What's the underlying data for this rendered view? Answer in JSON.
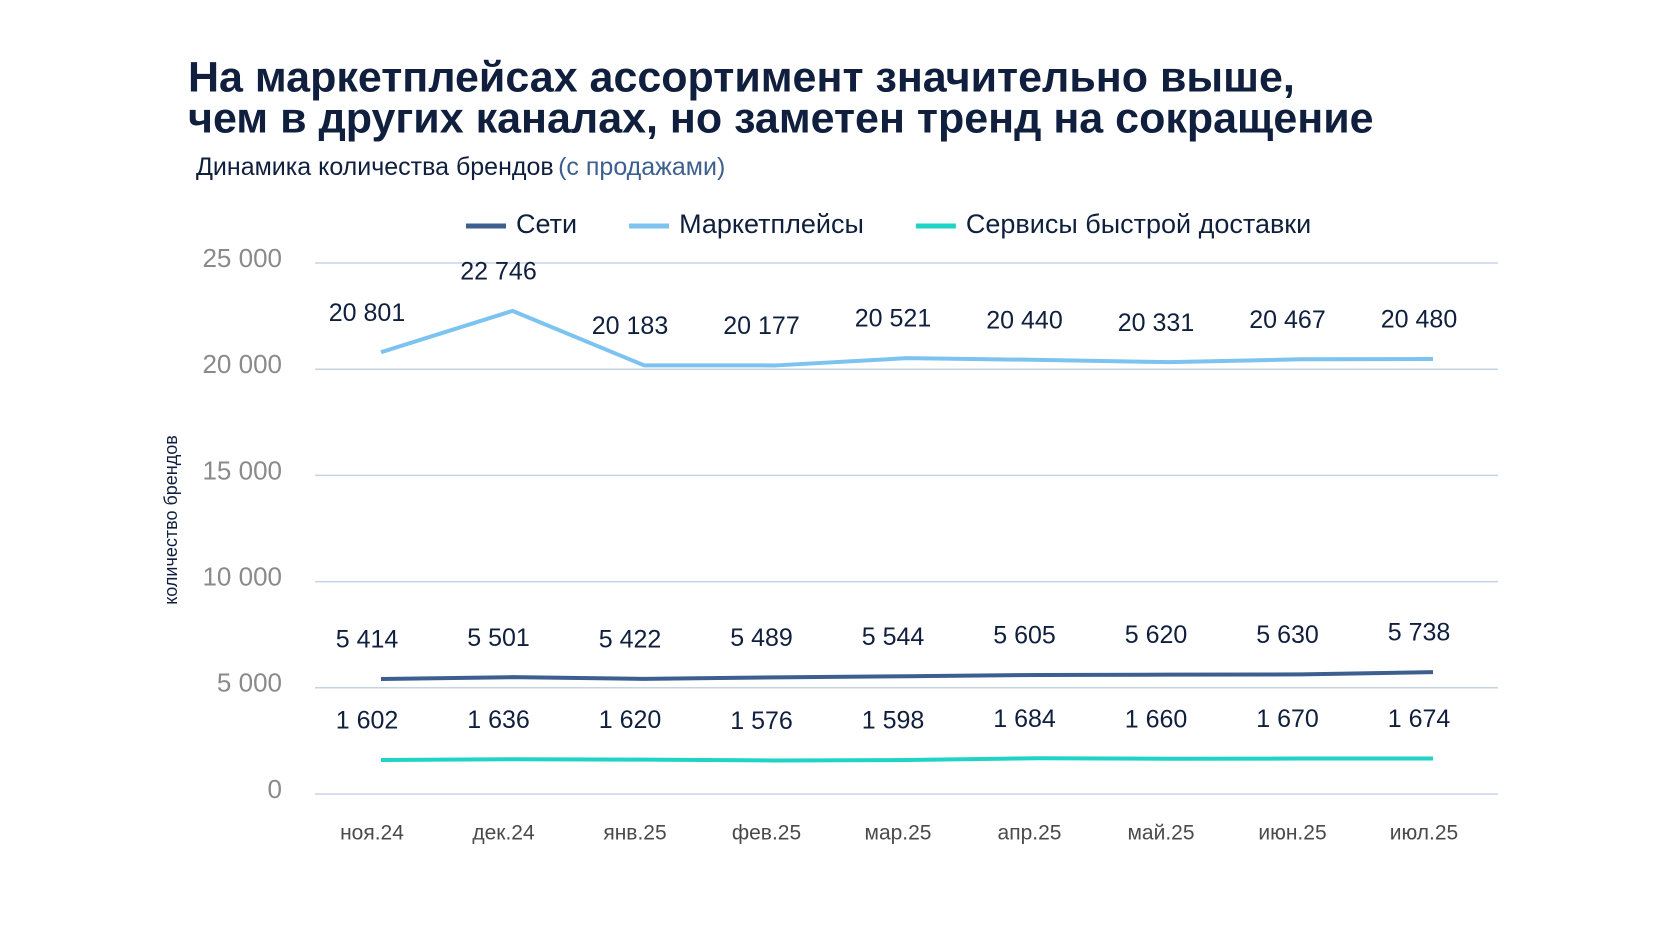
{
  "chart_data": {
    "type": "line",
    "title": [
      "На маркетплейсах ассортимент значительно выше,",
      "чем в других каналах, но заметен тренд на сокращение"
    ],
    "subtitle": "Динамика количества брендов",
    "subtitle_note": "(с продажами)",
    "y_label": "количество брендов",
    "categories": [
      "ноя.24",
      "дек.24",
      "янв.25",
      "фев.25",
      "мар.25",
      "апр.25",
      "май.25",
      "июн.25",
      "июл.25"
    ],
    "series": [
      {
        "name": "Сети",
        "color": "#3d5f8f",
        "values": [
          5414,
          5501,
          5422,
          5489,
          5544,
          5605,
          5620,
          5630,
          5738
        ],
        "value_labels": [
          "5 414",
          "5 501",
          "5 422",
          "5 489",
          "5 544",
          "5 605",
          "5 620",
          "5 630",
          "5 738"
        ]
      },
      {
        "name": "Маркетплейсы",
        "color": "#7cc3f0",
        "values": [
          20801,
          22746,
          20183,
          20177,
          20521,
          20440,
          20331,
          20467,
          20480
        ],
        "value_labels": [
          "20 801",
          "22 746",
          "20 183",
          "20 177",
          "20 521",
          "20 440",
          "20 331",
          "20 467",
          "20 480"
        ]
      },
      {
        "name": "Сервисы быстрой доставки",
        "color": "#1fd3c6",
        "values": [
          1602,
          1636,
          1620,
          1576,
          1598,
          1684,
          1660,
          1670,
          1674
        ],
        "value_labels": [
          "1 602",
          "1 636",
          "1 620",
          "1 576",
          "1 598",
          "1 684",
          "1 660",
          "1 670",
          "1 674"
        ]
      }
    ],
    "ylim": [
      0,
      25000
    ],
    "yticks": [
      0,
      {
        "value": 5000,
        "label": "5 000"
      },
      {
        "value": 10000,
        "label": "10 000"
      },
      {
        "value": 15000,
        "label": "15 000"
      },
      {
        "value": 20000,
        "label": "20 000"
      },
      {
        "value": 25000,
        "label": "25 000"
      }
    ],
    "grid": true,
    "legend": "top"
  }
}
